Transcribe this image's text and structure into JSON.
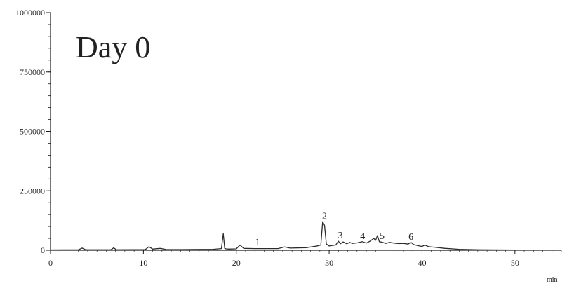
{
  "chart_data": {
    "type": "line",
    "title": "Day 0",
    "xlabel": "min",
    "ylabel": "",
    "xlim": [
      0,
      55
    ],
    "ylim": [
      0,
      1000000
    ],
    "x_ticks": [
      "0",
      "10",
      "20",
      "30",
      "40",
      "50"
    ],
    "y_ticks": [
      "0",
      "250000",
      "500000",
      "750000",
      "1000000"
    ],
    "grid": false,
    "series": [
      {
        "x": [
          0,
          3,
          3.4,
          3.8,
          6.5,
          6.8,
          7.1,
          10.2,
          10.6,
          11.0,
          11.8,
          12.5,
          14,
          17.5,
          18.4,
          18.6,
          18.75,
          18.9,
          19.2,
          20.0,
          20.4,
          20.8,
          22.0,
          24.5,
          25.2,
          25.8,
          27.5,
          28.6,
          29.1,
          29.3,
          29.5,
          29.7,
          30.0,
          30.7,
          31.0,
          31.2,
          31.5,
          31.9,
          32.2,
          32.5,
          33.0,
          33.6,
          34.0,
          34.4,
          34.8,
          35.0,
          35.2,
          35.4,
          35.7,
          36.1,
          36.5,
          37.0,
          37.5,
          38.0,
          38.5,
          38.8,
          39.1,
          39.5,
          40.0,
          40.3,
          40.7,
          41.5,
          42.5,
          44,
          46,
          50,
          55
        ],
        "y": [
          1500,
          2000,
          9000,
          2000,
          2000,
          10000,
          2000,
          3000,
          15000,
          5000,
          8000,
          3000,
          3000,
          4000,
          7000,
          70000,
          8000,
          6000,
          5000,
          6000,
          22000,
          8000,
          7000,
          7000,
          14000,
          9000,
          11000,
          17000,
          22000,
          120000,
          105000,
          26000,
          18000,
          22000,
          38000,
          27000,
          35000,
          27000,
          33000,
          29000,
          31000,
          36000,
          30000,
          38000,
          50000,
          42000,
          62000,
          36000,
          34000,
          29000,
          33000,
          30000,
          28000,
          29000,
          26000,
          33000,
          24000,
          20000,
          16000,
          22000,
          15000,
          12000,
          8000,
          4000,
          2000,
          1000,
          500
        ]
      }
    ],
    "annotations": [
      {
        "text": "1",
        "x": 22.3,
        "y": 10000
      },
      {
        "text": "2",
        "x": 29.5,
        "y": 120000
      },
      {
        "text": "3",
        "x": 31.2,
        "y": 38000
      },
      {
        "text": "4",
        "x": 33.6,
        "y": 36000
      },
      {
        "text": "5",
        "x": 35.7,
        "y": 36000
      },
      {
        "text": "6",
        "x": 38.8,
        "y": 33000
      }
    ],
    "colors": {
      "line": "#2b2b2b",
      "axis": "#1a1a1a"
    }
  }
}
